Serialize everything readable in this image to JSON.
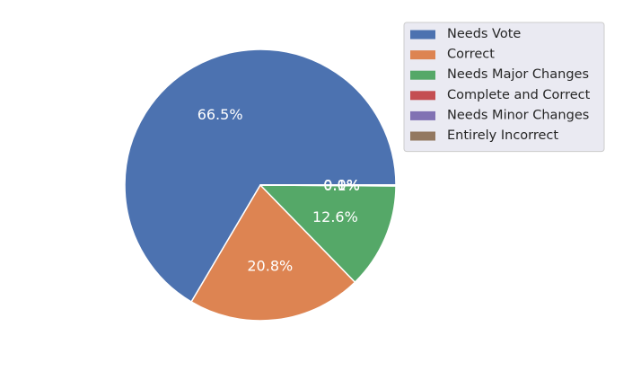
{
  "chart_data": {
    "type": "pie",
    "title": "",
    "slices": [
      {
        "label": "Needs Vote",
        "value": 66.5,
        "pct_label": "66.5%",
        "color": "#4c72b0"
      },
      {
        "label": "Correct",
        "value": 20.8,
        "pct_label": "20.8%",
        "color": "#dd8452"
      },
      {
        "label": "Needs Major Changes",
        "value": 12.6,
        "pct_label": "12.6%",
        "color": "#55a868"
      },
      {
        "label": "Complete and Correct",
        "value": 0.1,
        "pct_label": "0.1%",
        "color": "#c44e52"
      },
      {
        "label": "Needs Minor Changes",
        "value": 0.0,
        "pct_label": "0.0%",
        "color": "#8172b3"
      },
      {
        "label": "Entirely Incorrect",
        "value": 0.0,
        "pct_label": "0.0%",
        "color": "#937860"
      }
    ],
    "start_angle_deg": 0,
    "direction": "counterclockwise",
    "legend_position": "top-right",
    "legend_background": "#eaeaf2"
  }
}
